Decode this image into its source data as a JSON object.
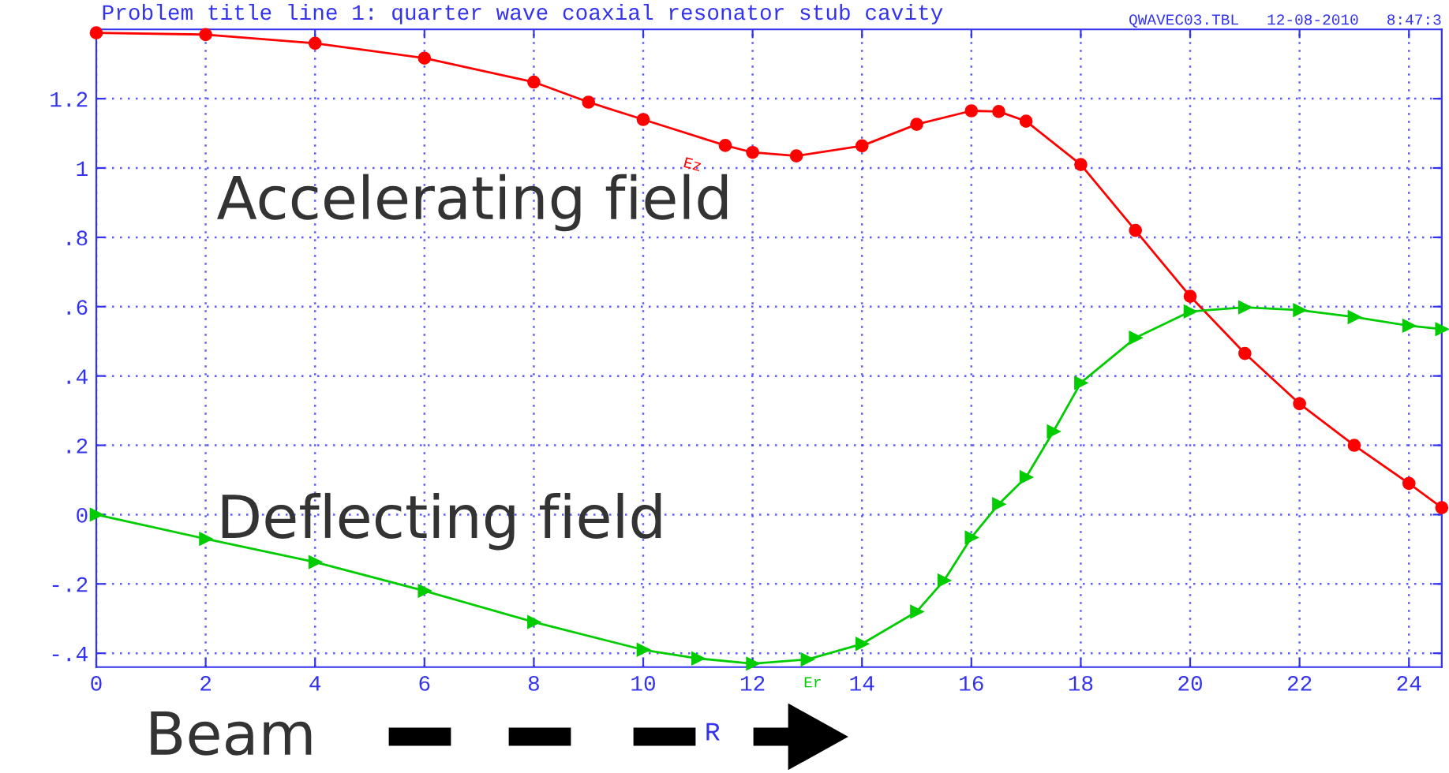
{
  "chart_data": {
    "type": "line",
    "title": "Problem title line 1: quarter wave coaxial resonator stub cavity",
    "xlabel": "R",
    "xlim": [
      0,
      24.6
    ],
    "ylim": [
      -0.44,
      1.4
    ],
    "xticks": [
      0,
      2,
      4,
      6,
      8,
      10,
      12,
      14,
      16,
      18,
      20,
      22,
      24
    ],
    "yticks": [
      {
        "value": -0.4,
        "label": "-.4"
      },
      {
        "value": -0.2,
        "label": "-.2"
      },
      0,
      {
        "value": 0.2,
        "label": ".2"
      },
      {
        "value": 0.4,
        "label": ".4"
      },
      {
        "value": 0.6,
        "label": ".6"
      },
      {
        "value": 0.8,
        "label": ".8"
      },
      1,
      1.2
    ],
    "grid": true,
    "line_style": "solid",
    "series": [
      {
        "name": "Ez",
        "color": "#ff0000",
        "marker": "circle",
        "x": [
          0,
          2,
          4,
          6,
          8,
          9,
          10,
          11.5,
          12,
          12.8,
          14,
          15,
          16,
          16.5,
          17,
          18,
          19,
          20,
          21,
          22,
          23,
          24,
          24.6
        ],
        "values": [
          1.39,
          1.385,
          1.36,
          1.317,
          1.248,
          1.19,
          1.14,
          1.065,
          1.045,
          1.035,
          1.064,
          1.126,
          1.165,
          1.163,
          1.135,
          1.01,
          0.82,
          0.63,
          0.465,
          0.32,
          0.2,
          0.09,
          0.02
        ]
      },
      {
        "name": "Er",
        "color": "#00cc00",
        "marker": "triangle",
        "x": [
          0,
          2,
          4,
          6,
          8,
          10,
          11,
          12,
          13,
          14,
          15,
          15.5,
          16,
          16.5,
          17,
          17.5,
          18,
          19,
          20,
          21,
          22,
          23,
          24,
          24.6
        ],
        "values": [
          0,
          -0.07,
          -0.137,
          -0.22,
          -0.31,
          -0.39,
          -0.415,
          -0.43,
          -0.418,
          -0.373,
          -0.28,
          -0.19,
          -0.066,
          0.03,
          0.108,
          0.24,
          0.38,
          0.51,
          0.586,
          0.598,
          0.59,
          0.57,
          0.545,
          0.535
        ]
      }
    ],
    "annotations": [
      "QWAVEC03.TBL   12-08-2010   8:47:3",
      "Accelerating field",
      "Deflecting field",
      "Beam"
    ]
  }
}
